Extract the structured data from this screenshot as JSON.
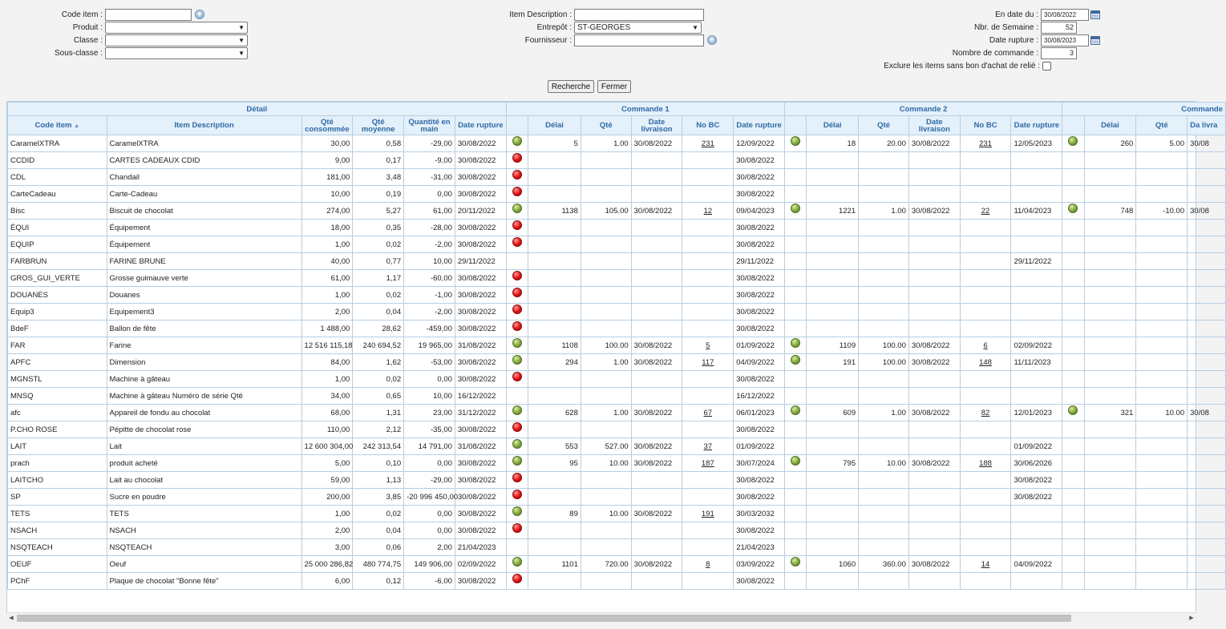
{
  "filters": {
    "code_item": {
      "label": "Code item :",
      "value": ""
    },
    "produit": {
      "label": "Produit :",
      "value": ""
    },
    "classe": {
      "label": "Classe :",
      "value": ""
    },
    "sous_classe": {
      "label": "Sous-classe :",
      "value": ""
    },
    "item_description": {
      "label": "Item Description :",
      "value": ""
    },
    "entrepot": {
      "label": "Entrepôt :",
      "value": "ST-GEORGES"
    },
    "fournisseur": {
      "label": "Fournisseur :",
      "value": ""
    },
    "en_date_du": {
      "label": "En date du :",
      "value": "30/08/2022"
    },
    "nbr_semaine": {
      "label": "Nbr. de Semaine :",
      "value": "52"
    },
    "date_rupture": {
      "label": "Date rupture :",
      "value": "30/08/2023"
    },
    "nombre_commande": {
      "label": "Nombre de commande :",
      "value": "3"
    },
    "exclure": {
      "label": "Exclure les items sans bon d'achat de relié :"
    }
  },
  "buttons": {
    "recherche": "Recherche",
    "fermer": "Fermer"
  },
  "table": {
    "group_headers": {
      "detail": "Détail",
      "commande1": "Commande 1",
      "commande2": "Commande 2",
      "commande3": "Commande"
    },
    "columns": {
      "code_item": "Code item",
      "sort_icon": "▲",
      "item_description": "Item Description",
      "qte_consommee": "Qté consommée",
      "qte_moyenne": "Qté moyenne",
      "quantite_en_main": "Quantité en main",
      "date_rupture": "Date rupture",
      "delai": "Délai",
      "qte": "Qté",
      "date_livraison": "Date livraison",
      "no_bc": "No BC",
      "date_livraison_cut": "Da livra"
    },
    "rows": [
      {
        "code": "CaramelXTRA",
        "desc": "CaramelXTRA",
        "cons": "30,00",
        "moy": "0,58",
        "main": "-29,00",
        "rupt": "30/08/2022",
        "s1": "g",
        "d1": "5",
        "q1": "1.00",
        "l1": "30/08/2022",
        "b1": "231",
        "r1": "12/09/2022",
        "s2": "g",
        "d2": "18",
        "q2": "20.00",
        "l2": "30/08/2022",
        "b2": "231",
        "r2": "12/05/2023",
        "s3": "g",
        "d3": "260",
        "q3": "5.00",
        "l3": "30/08"
      },
      {
        "code": "CCDID",
        "desc": "CARTES CADEAUX CDID",
        "cons": "9,00",
        "moy": "0,17",
        "main": "-9,00",
        "rupt": "30/08/2022",
        "s1": "r",
        "r1": "30/08/2022"
      },
      {
        "code": "CDL",
        "desc": "Chandail",
        "cons": "181,00",
        "moy": "3,48",
        "main": "-31,00",
        "rupt": "30/08/2022",
        "s1": "r",
        "r1": "30/08/2022"
      },
      {
        "code": "CarteCadeau",
        "desc": "Carte-Cadeau",
        "cons": "10,00",
        "moy": "0,19",
        "main": "0,00",
        "rupt": "30/08/2022",
        "s1": "r",
        "r1": "30/08/2022"
      },
      {
        "code": "Bisc",
        "desc": "Biscuit de chocolat",
        "cons": "274,00",
        "moy": "5,27",
        "main": "61,00",
        "rupt": "20/11/2022",
        "s1": "g",
        "d1": "1138",
        "q1": "105.00",
        "l1": "30/08/2022",
        "b1": "12",
        "r1": "09/04/2023",
        "s2": "g",
        "d2": "1221",
        "q2": "1.00",
        "l2": "30/08/2022",
        "b2": "22",
        "r2": "11/04/2023",
        "s3": "g",
        "d3": "748",
        "q3": "-10.00",
        "l3": "30/08"
      },
      {
        "code": "ÉQUI",
        "desc": "Équipement",
        "cons": "18,00",
        "moy": "0,35",
        "main": "-28,00",
        "rupt": "30/08/2022",
        "s1": "r",
        "r1": "30/08/2022"
      },
      {
        "code": "EQUIP",
        "desc": "Équipement",
        "cons": "1,00",
        "moy": "0,02",
        "main": "-2,00",
        "rupt": "30/08/2022",
        "s1": "r",
        "r1": "30/08/2022"
      },
      {
        "code": "FARBRUN",
        "desc": "FARINE BRUNE",
        "cons": "40,00",
        "moy": "0,77",
        "main": "10,00",
        "rupt": "29/11/2022",
        "r1": "29/11/2022",
        "r2": "29/11/2022"
      },
      {
        "code": "GROS_GUI_VERTE",
        "desc": "Grosse guimauve verte",
        "cons": "61,00",
        "moy": "1,17",
        "main": "-60,00",
        "rupt": "30/08/2022",
        "s1": "r",
        "r1": "30/08/2022"
      },
      {
        "code": "DOUANES",
        "desc": "Douanes",
        "cons": "1,00",
        "moy": "0,02",
        "main": "-1,00",
        "rupt": "30/08/2022",
        "s1": "r",
        "r1": "30/08/2022"
      },
      {
        "code": "Equip3",
        "desc": "Equipement3",
        "cons": "2,00",
        "moy": "0,04",
        "main": "-2,00",
        "rupt": "30/08/2022",
        "s1": "r",
        "r1": "30/08/2022"
      },
      {
        "code": "BdeF",
        "desc": "Ballon de fête",
        "cons": "1 488,00",
        "moy": "28,62",
        "main": "-459,00",
        "rupt": "30/08/2022",
        "s1": "r",
        "r1": "30/08/2022"
      },
      {
        "code": "FAR",
        "desc": "Farine",
        "cons": "12 516 115,18",
        "moy": "240 694,52",
        "main": "19 965,00",
        "rupt": "31/08/2022",
        "s1": "g",
        "d1": "1108",
        "q1": "100.00",
        "l1": "30/08/2022",
        "b1": "5",
        "r1": "01/09/2022",
        "s2": "g",
        "d2": "1109",
        "q2": "100.00",
        "l2": "30/08/2022",
        "b2": "6",
        "r2": "02/09/2022"
      },
      {
        "code": "APFC",
        "desc": "Dimension",
        "cons": "84,00",
        "moy": "1,62",
        "main": "-53,00",
        "rupt": "30/08/2022",
        "s1": "g",
        "d1": "294",
        "q1": "1.00",
        "l1": "30/08/2022",
        "b1": "117",
        "r1": "04/09/2022",
        "s2": "g",
        "d2": "191",
        "q2": "100.00",
        "l2": "30/08/2022",
        "b2": "148",
        "r2": "11/11/2023"
      },
      {
        "code": "MGNSTL",
        "desc": "Machine à gâteau",
        "cons": "1,00",
        "moy": "0,02",
        "main": "0,00",
        "rupt": "30/08/2022",
        "s1": "r",
        "r1": "30/08/2022"
      },
      {
        "code": "MNSQ",
        "desc": "Machine à gâteau Numéro de série Qté",
        "cons": "34,00",
        "moy": "0,65",
        "main": "10,00",
        "rupt": "16/12/2022",
        "r1": "16/12/2022"
      },
      {
        "code": "afc",
        "desc": "Appareil de fondu au chocolat",
        "cons": "68,00",
        "moy": "1,31",
        "main": "23,00",
        "rupt": "31/12/2022",
        "s1": "g",
        "d1": "628",
        "q1": "1.00",
        "l1": "30/08/2022",
        "b1": "67",
        "r1": "06/01/2023",
        "s2": "g",
        "d2": "609",
        "q2": "1.00",
        "l2": "30/08/2022",
        "b2": "82",
        "r2": "12/01/2023",
        "s3": "g",
        "d3": "321",
        "q3": "10.00",
        "l3": "30/08"
      },
      {
        "code": "P.CHO ROSE",
        "desc": "Pépitte de chocolat rose",
        "cons": "110,00",
        "moy": "2,12",
        "main": "-35,00",
        "rupt": "30/08/2022",
        "s1": "r",
        "r1": "30/08/2022"
      },
      {
        "code": "LAIT",
        "desc": "Lait",
        "cons": "12 600 304,00",
        "moy": "242 313,54",
        "main": "14 791,00",
        "rupt": "31/08/2022",
        "s1": "g",
        "d1": "553",
        "q1": "527.00",
        "l1": "30/08/2022",
        "b1": "37",
        "r1": "01/09/2022",
        "r2": "01/09/2022"
      },
      {
        "code": "prach",
        "desc": "produit acheté",
        "cons": "5,00",
        "moy": "0,10",
        "main": "0,00",
        "rupt": "30/08/2022",
        "s1": "g",
        "d1": "95",
        "q1": "10.00",
        "l1": "30/08/2022",
        "b1": "187",
        "r1": "30/07/2024",
        "s2": "g",
        "d2": "795",
        "q2": "10.00",
        "l2": "30/08/2022",
        "b2": "188",
        "r2": "30/06/2026"
      },
      {
        "code": "LAITCHO",
        "desc": "Lait au chocolat",
        "cons": "59,00",
        "moy": "1,13",
        "main": "-29,00",
        "rupt": "30/08/2022",
        "s1": "r",
        "r1": "30/08/2022",
        "r2": "30/08/2022"
      },
      {
        "code": "SP",
        "desc": "Sucre en poudre",
        "cons": "200,00",
        "moy": "3,85",
        "main": "-20 996 450,00",
        "rupt": "30/08/2022",
        "s1": "r",
        "r1": "30/08/2022",
        "r2": "30/08/2022"
      },
      {
        "code": "TETS",
        "desc": "TETS",
        "cons": "1,00",
        "moy": "0,02",
        "main": "0,00",
        "rupt": "30/08/2022",
        "s1": "g",
        "d1": "89",
        "q1": "10.00",
        "l1": "30/08/2022",
        "b1": "191",
        "r1": "30/03/2032"
      },
      {
        "code": "NSACH",
        "desc": "NSACH",
        "cons": "2,00",
        "moy": "0,04",
        "main": "0,00",
        "rupt": "30/08/2022",
        "s1": "r",
        "r1": "30/08/2022"
      },
      {
        "code": "NSQTEACH",
        "desc": "NSQTEACH",
        "cons": "3,00",
        "moy": "0,06",
        "main": "2,00",
        "rupt": "21/04/2023",
        "r1": "21/04/2023"
      },
      {
        "code": "OEUF",
        "desc": "Oeuf",
        "cons": "25 000 286,82",
        "moy": "480 774,75",
        "main": "149 906,00",
        "rupt": "02/09/2022",
        "s1": "g",
        "d1": "1101",
        "q1": "720.00",
        "l1": "30/08/2022",
        "b1": "8",
        "r1": "03/09/2022",
        "s2": "g",
        "d2": "1060",
        "q2": "360.00",
        "l2": "30/08/2022",
        "b2": "14",
        "r2": "04/09/2022"
      },
      {
        "code": "PChF",
        "desc": "Plaque de chocolat \"Bonne fête\"",
        "cons": "6,00",
        "moy": "0,12",
        "main": "-6,00",
        "rupt": "30/08/2022",
        "s1": "r",
        "r1": "30/08/2022"
      }
    ]
  },
  "scrollbar": {
    "left_arrow": "◀",
    "right_arrow": "▶"
  },
  "colors": {
    "header_bg": "#e4f0fa",
    "header_text": "#2f6aa5",
    "border": "#b7cee2",
    "ok": "#7fa83a",
    "alert": "#e01010"
  }
}
